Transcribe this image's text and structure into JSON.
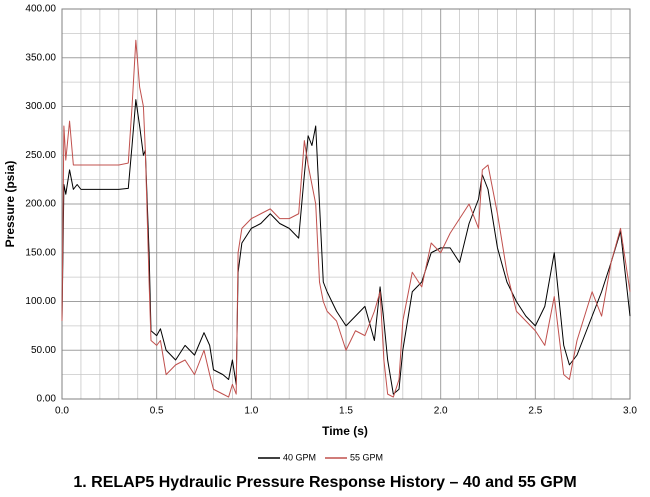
{
  "chart_data": {
    "type": "line",
    "title": "1.  RELAP5 Hydraulic Pressure Response History – 40 and 55 GPM",
    "x_label": "Time (s)",
    "y_label": "Pressure (psia)",
    "xlim": [
      0,
      3
    ],
    "ylim": [
      0,
      400
    ],
    "xticks": [
      {
        "value": 0,
        "label": "0.0"
      },
      {
        "value": 0.5,
        "label": "0.5"
      },
      {
        "value": 1,
        "label": "1.0"
      },
      {
        "value": 1.5,
        "label": "1.5"
      },
      {
        "value": 2,
        "label": "2.0"
      },
      {
        "value": 2.5,
        "label": "2.5"
      },
      {
        "value": 3,
        "label": "3.0"
      }
    ],
    "yticks": [
      {
        "value": 0,
        "label": "0.00"
      },
      {
        "value": 50,
        "label": "50.00"
      },
      {
        "value": 100,
        "label": "100.00"
      },
      {
        "value": 150,
        "label": "150.00"
      },
      {
        "value": 200,
        "label": "200.00"
      },
      {
        "value": 250,
        "label": "250.00"
      },
      {
        "value": 300,
        "label": "300.00"
      },
      {
        "value": 350,
        "label": "350.00"
      },
      {
        "value": 400,
        "label": "400.00"
      }
    ],
    "minor_xticks": [
      0.1,
      0.2,
      0.3,
      0.4,
      0.6,
      0.7,
      0.8,
      0.9,
      1.1,
      1.2,
      1.3,
      1.4,
      1.6,
      1.7,
      1.8,
      1.9,
      2.1,
      2.2,
      2.3,
      2.4,
      2.6,
      2.7,
      2.8,
      2.9
    ],
    "minor_yticks": [
      25,
      75,
      125,
      175,
      225,
      275,
      325,
      375
    ],
    "grid": true,
    "legend": "bottom",
    "x": [
      0,
      0.01,
      0.02,
      0.04,
      0.06,
      0.08,
      0.1,
      0.15,
      0.2,
      0.25,
      0.3,
      0.35,
      0.37,
      0.39,
      0.41,
      0.43,
      0.44,
      0.46,
      0.47,
      0.5,
      0.52,
      0.55,
      0.6,
      0.65,
      0.7,
      0.75,
      0.78,
      0.8,
      0.85,
      0.88,
      0.9,
      0.92,
      0.93,
      0.95,
      1.0,
      1.05,
      1.1,
      1.15,
      1.2,
      1.25,
      1.28,
      1.3,
      1.32,
      1.34,
      1.36,
      1.38,
      1.4,
      1.45,
      1.5,
      1.55,
      1.6,
      1.65,
      1.68,
      1.7,
      1.72,
      1.75,
      1.78,
      1.8,
      1.85,
      1.9,
      1.95,
      2.0,
      2.05,
      2.1,
      2.15,
      2.2,
      2.22,
      2.25,
      2.3,
      2.35,
      2.4,
      2.45,
      2.5,
      2.55,
      2.6,
      2.65,
      2.68,
      2.72,
      2.8,
      2.85,
      2.9,
      2.95,
      3.0
    ],
    "series": [
      {
        "name": "40 GPM",
        "color": "#000000",
        "values": [
          80,
          220,
          210,
          235,
          215,
          220,
          215,
          215,
          215,
          215,
          215,
          216,
          260,
          307,
          280,
          250,
          255,
          150,
          70,
          65,
          72,
          50,
          40,
          55,
          45,
          68,
          55,
          30,
          25,
          20,
          40,
          15,
          130,
          160,
          175,
          180,
          190,
          180,
          175,
          165,
          230,
          270,
          260,
          280,
          200,
          120,
          110,
          90,
          75,
          85,
          95,
          60,
          115,
          80,
          40,
          5,
          10,
          50,
          110,
          120,
          150,
          155,
          155,
          140,
          180,
          205,
          230,
          215,
          155,
          120,
          100,
          85,
          75,
          95,
          150,
          55,
          35,
          45,
          85,
          110,
          140,
          172,
          85
        ]
      },
      {
        "name": "55 GPM",
        "color": "#c0504d",
        "values": [
          80,
          280,
          245,
          285,
          240,
          240,
          240,
          240,
          240,
          240,
          240,
          242,
          300,
          368,
          320,
          300,
          255,
          120,
          60,
          55,
          60,
          25,
          35,
          40,
          25,
          50,
          25,
          10,
          5,
          2,
          15,
          5,
          150,
          175,
          185,
          190,
          195,
          185,
          185,
          190,
          265,
          240,
          220,
          200,
          120,
          100,
          90,
          80,
          50,
          70,
          65,
          90,
          110,
          40,
          5,
          2,
          20,
          80,
          130,
          115,
          160,
          150,
          170,
          185,
          200,
          175,
          235,
          240,
          190,
          130,
          90,
          80,
          70,
          55,
          105,
          25,
          20,
          60,
          110,
          85,
          140,
          175,
          110
        ]
      }
    ]
  }
}
